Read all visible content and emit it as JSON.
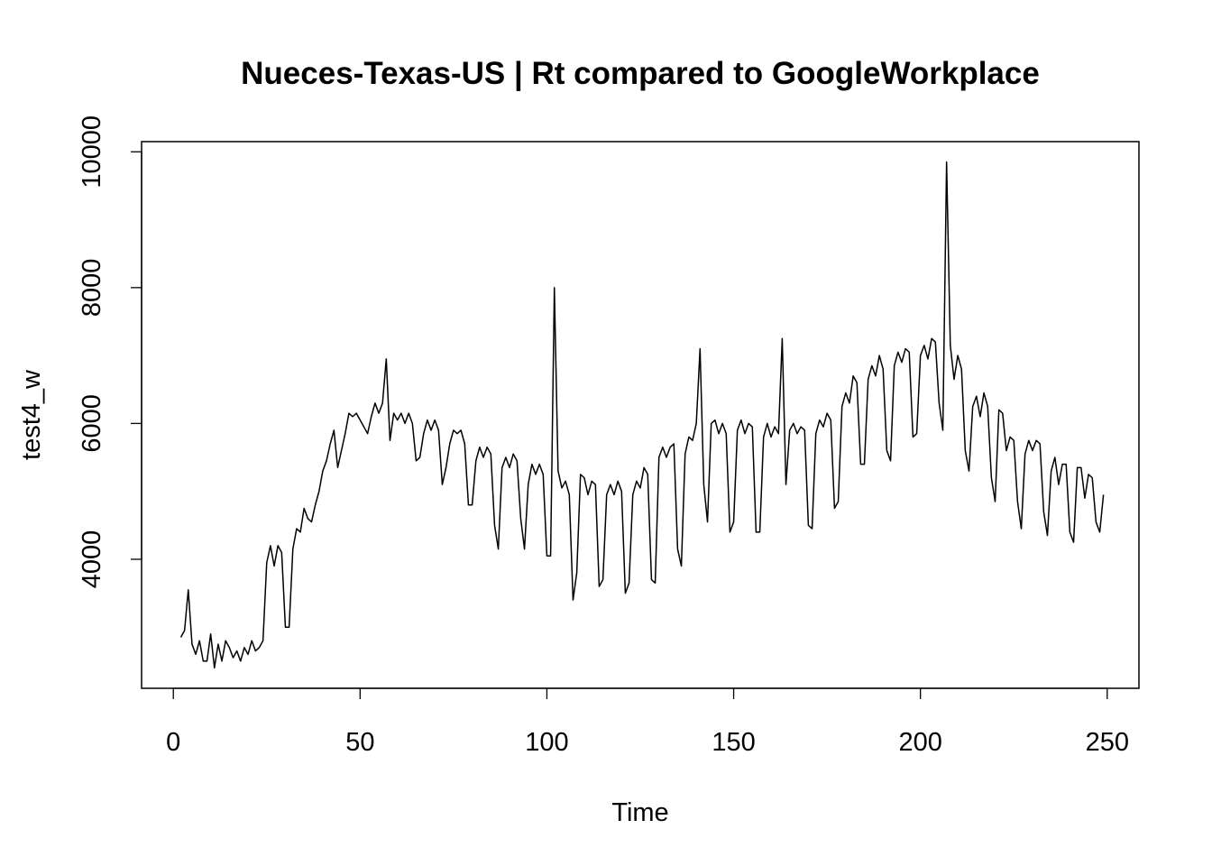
{
  "chart_data": {
    "type": "line",
    "title": "Nueces-Texas-US | Rt compared to GoogleWorkplace",
    "xlabel": "Time",
    "ylabel": "test4_w",
    "xlim": [
      -8.5,
      258.5
    ],
    "ylim": [
      2100,
      10150
    ],
    "x_ticks": [
      0,
      50,
      100,
      150,
      200,
      250
    ],
    "y_ticks": [
      4000,
      6000,
      8000,
      10000
    ],
    "x_tick_labels": [
      "0",
      "50",
      "100",
      "150",
      "200",
      "250"
    ],
    "y_tick_labels": [
      "4000",
      "6000",
      "8000",
      "10000"
    ],
    "grid": false,
    "legend": "none",
    "x_start": 2,
    "series": [
      {
        "values": [
          2850,
          2950,
          3550,
          2750,
          2600,
          2800,
          2500,
          2500,
          2900,
          2400,
          2750,
          2500,
          2800,
          2700,
          2550,
          2650,
          2500,
          2700,
          2600,
          2800,
          2650,
          2700,
          2800,
          3950,
          4200,
          3900,
          4200,
          4100,
          3000,
          3000,
          4150,
          4450,
          4400,
          4750,
          4600,
          4550,
          4800,
          5000,
          5300,
          5450,
          5700,
          5900,
          5350,
          5600,
          5850,
          6150,
          6100,
          6150,
          6050,
          5950,
          5850,
          6100,
          6300,
          6150,
          6300,
          6950,
          5750,
          6150,
          6050,
          6150,
          6000,
          6150,
          6000,
          5450,
          5500,
          5850,
          6050,
          5900,
          6050,
          5900,
          5100,
          5350,
          5700,
          5900,
          5850,
          5900,
          5700,
          4800,
          4800,
          5450,
          5650,
          5500,
          5650,
          5550,
          4500,
          4150,
          5350,
          5500,
          5350,
          5550,
          5450,
          4600,
          4150,
          5100,
          5400,
          5250,
          5400,
          5250,
          4050,
          4050,
          8000,
          5300,
          5050,
          5150,
          4950,
          3400,
          3800,
          5250,
          5200,
          4950,
          5150,
          5100,
          3600,
          3700,
          4950,
          5100,
          4950,
          5150,
          5000,
          3500,
          3650,
          4950,
          5150,
          5050,
          5350,
          5250,
          3700,
          3650,
          5500,
          5650,
          5500,
          5650,
          5700,
          4150,
          3900,
          5550,
          5800,
          5750,
          6000,
          7100,
          5100,
          4550,
          6000,
          6050,
          5850,
          6000,
          5850,
          4400,
          4550,
          5900,
          6050,
          5850,
          6000,
          5950,
          4400,
          4400,
          5800,
          6000,
          5800,
          5950,
          5850,
          7250,
          5100,
          5900,
          6000,
          5850,
          5950,
          5900,
          4500,
          4450,
          5850,
          6050,
          5950,
          6150,
          6050,
          4750,
          4850,
          6250,
          6450,
          6300,
          6700,
          6600,
          5400,
          5400,
          6650,
          6850,
          6700,
          7000,
          6800,
          5600,
          5450,
          6850,
          7050,
          6900,
          7100,
          7050,
          5800,
          5850,
          7000,
          7150,
          6950,
          7250,
          7200,
          6300,
          5900,
          9850,
          7150,
          6650,
          7000,
          6800,
          5600,
          5300,
          6250,
          6400,
          6100,
          6450,
          6250,
          5200,
          4850,
          6200,
          6150,
          5600,
          5800,
          5750,
          4850,
          4450,
          5550,
          5750,
          5600,
          5750,
          5700,
          4700,
          4350,
          5300,
          5500,
          5100,
          5400,
          5400,
          4400,
          4250,
          5350,
          5350,
          4900,
          5250,
          5200,
          4550,
          4400,
          4950
        ]
      }
    ]
  }
}
